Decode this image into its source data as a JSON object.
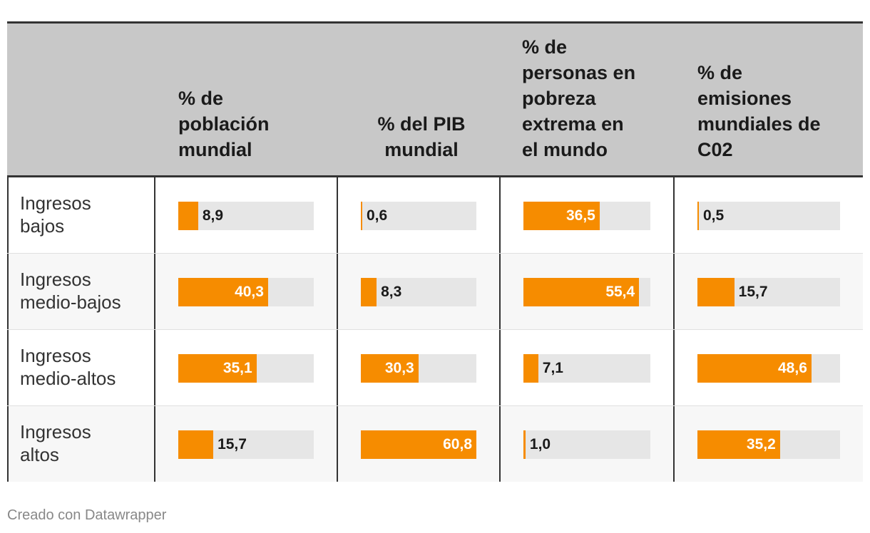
{
  "chart_data": {
    "type": "table",
    "columns": [
      {
        "label": "% de población mundial",
        "max": 60.8
      },
      {
        "label": "% del PIB mundial",
        "max": 60.8
      },
      {
        "label": "% de personas en pobreza extrema en el mundo",
        "max": 60.8
      },
      {
        "label": "% de emisiones mundiales de C02",
        "max": 60.8
      }
    ],
    "header_lines": [
      [
        "% de",
        "población",
        "mundial"
      ],
      [
        "% del PIB",
        "mundial"
      ],
      [
        "% de",
        "personas en",
        "pobreza",
        "extrema en",
        "el mundo"
      ],
      [
        "% de",
        "emisiones",
        "mundiales de",
        "C02"
      ]
    ],
    "rows": [
      {
        "label_lines": [
          "Ingresos",
          "bajos"
        ],
        "values": [
          8.9,
          0.6,
          36.5,
          0.5
        ],
        "display": [
          "8,9",
          "0,6",
          "36,5",
          "0,5"
        ]
      },
      {
        "label_lines": [
          "Ingresos",
          "medio-bajos"
        ],
        "values": [
          40.3,
          8.3,
          55.4,
          15.7
        ],
        "display": [
          "40,3",
          "8,3",
          "55,4",
          "15,7"
        ]
      },
      {
        "label_lines": [
          "Ingresos",
          "medio-altos"
        ],
        "values": [
          35.1,
          30.3,
          7.1,
          48.6
        ],
        "display": [
          "35,1",
          "30,3",
          "7,1",
          "48,6"
        ]
      },
      {
        "label_lines": [
          "Ingresos",
          "altos"
        ],
        "values": [
          15.7,
          60.8,
          1.0,
          35.2
        ],
        "display": [
          "15,7",
          "60,8",
          "1,0",
          "35,2"
        ]
      }
    ],
    "bar_color": "#f68c00",
    "track_color": "#e6e6e6"
  },
  "footer": {
    "credit": "Creado con Datawrapper"
  }
}
